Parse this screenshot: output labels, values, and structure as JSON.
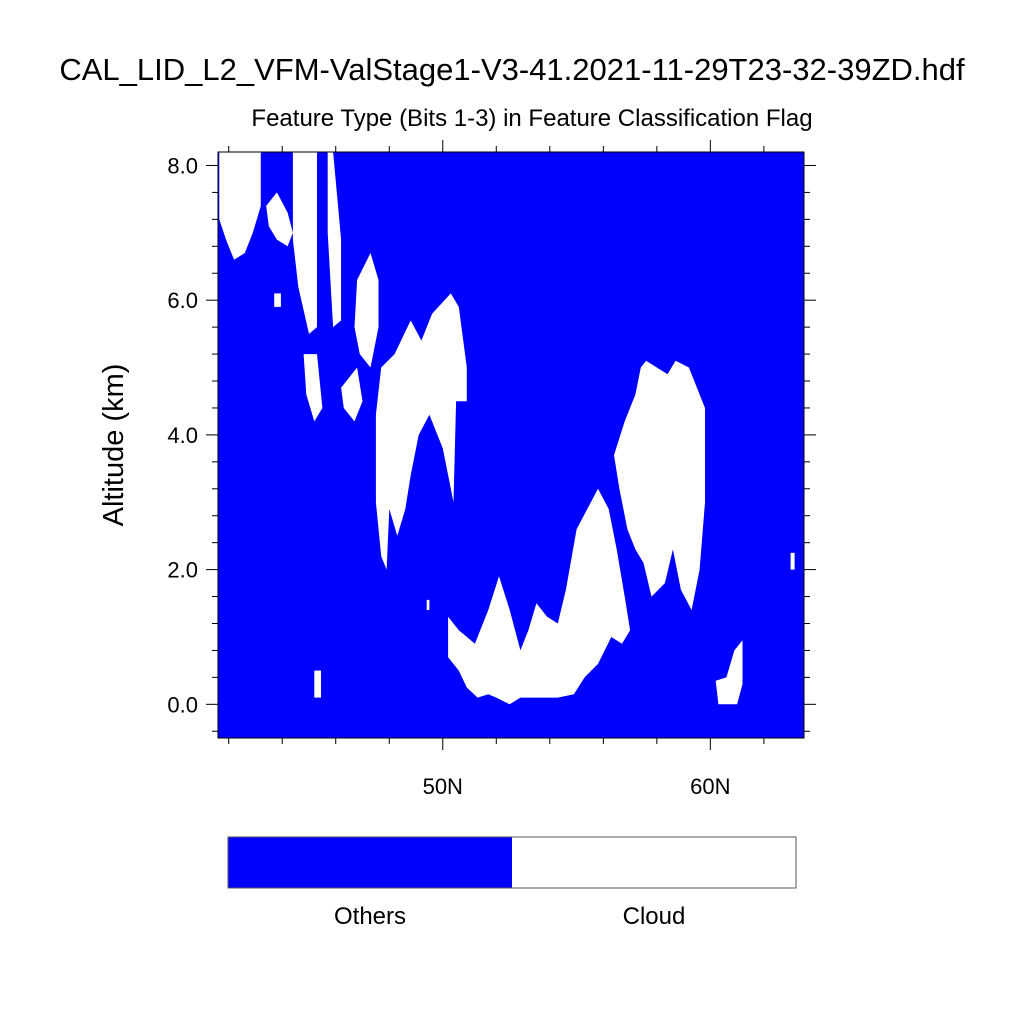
{
  "chart_data": {
    "type": "heatmap",
    "title": "CAL_LID_L2_VFM-ValStage1-V3-41.2021-11-29T23-32-39ZD.hdf",
    "subtitle": "Feature Type (Bits 1-3) in Feature Classification Flag",
    "xlabel": "",
    "ylabel": "Altitude (km)",
    "x_units": "degrees latitude N",
    "xlim": [
      41.6,
      63.5
    ],
    "ylim": [
      -0.5,
      8.2
    ],
    "x_ticks": [
      {
        "value": 50,
        "label": "50N"
      },
      {
        "value": 60,
        "label": "60N"
      }
    ],
    "x_minor_ticks": [
      42,
      44,
      46,
      48,
      52,
      54,
      56,
      58,
      62
    ],
    "y_ticks": [
      {
        "value": 0,
        "label": "0.0"
      },
      {
        "value": 2,
        "label": "2.0"
      },
      {
        "value": 4,
        "label": "4.0"
      },
      {
        "value": 6,
        "label": "6.0"
      },
      {
        "value": 8,
        "label": "8.0"
      }
    ],
    "y_minor_ticks": [
      -0.4,
      0.4,
      0.8,
      1.2,
      1.6,
      2.4,
      2.8,
      3.2,
      3.6,
      4.4,
      4.8,
      5.2,
      5.6,
      6.4,
      6.8,
      7.2,
      7.6
    ],
    "grid": false,
    "legend": {
      "placement": "bottom",
      "categories": [
        {
          "label": "Others",
          "color": "#0000ff"
        },
        {
          "label": "Cloud",
          "color": "#ffffff"
        }
      ]
    },
    "background_class": "Others",
    "cloud_regions": [
      {
        "class": "Cloud",
        "points": [
          [
            41.65,
            8.2
          ],
          [
            43.2,
            8.2
          ],
          [
            43.2,
            7.4
          ],
          [
            42.9,
            7.0
          ],
          [
            42.6,
            6.7
          ],
          [
            42.2,
            6.6
          ],
          [
            41.9,
            6.9
          ],
          [
            41.65,
            7.2
          ]
        ]
      },
      {
        "class": "Cloud",
        "points": [
          [
            43.4,
            7.4
          ],
          [
            43.8,
            7.6
          ],
          [
            44.2,
            7.3
          ],
          [
            44.4,
            7.0
          ],
          [
            44.2,
            6.8
          ],
          [
            43.8,
            6.9
          ],
          [
            43.5,
            7.1
          ]
        ]
      },
      {
        "class": "Cloud",
        "points": [
          [
            43.7,
            6.1
          ],
          [
            43.95,
            6.1
          ],
          [
            43.95,
            5.9
          ],
          [
            43.7,
            5.9
          ]
        ]
      },
      {
        "class": "Cloud",
        "points": [
          [
            44.4,
            8.2
          ],
          [
            45.3,
            8.2
          ],
          [
            45.3,
            5.6
          ],
          [
            45.0,
            5.5
          ],
          [
            44.6,
            6.2
          ],
          [
            44.4,
            6.9
          ]
        ]
      },
      {
        "class": "Cloud",
        "points": [
          [
            44.8,
            5.2
          ],
          [
            45.3,
            5.2
          ],
          [
            45.5,
            4.4
          ],
          [
            45.2,
            4.2
          ],
          [
            44.9,
            4.6
          ]
        ]
      },
      {
        "class": "Cloud",
        "points": [
          [
            45.7,
            8.2
          ],
          [
            45.9,
            8.2
          ],
          [
            46.2,
            6.9
          ],
          [
            46.2,
            5.7
          ],
          [
            45.9,
            5.6
          ],
          [
            45.7,
            7.0
          ]
        ]
      },
      {
        "class": "Cloud",
        "points": [
          [
            46.2,
            4.7
          ],
          [
            46.8,
            5.0
          ],
          [
            47.0,
            4.5
          ],
          [
            46.7,
            4.2
          ],
          [
            46.3,
            4.4
          ]
        ]
      },
      {
        "class": "Cloud",
        "points": [
          [
            46.8,
            6.3
          ],
          [
            47.3,
            6.7
          ],
          [
            47.6,
            6.3
          ],
          [
            47.6,
            5.6
          ],
          [
            47.3,
            5.0
          ],
          [
            46.9,
            5.2
          ],
          [
            46.7,
            5.6
          ]
        ]
      },
      {
        "class": "Cloud",
        "points": [
          [
            47.5,
            4.3
          ],
          [
            47.7,
            5.0
          ],
          [
            48.2,
            5.2
          ],
          [
            48.8,
            5.7
          ],
          [
            49.2,
            5.4
          ],
          [
            49.6,
            5.8
          ],
          [
            50.3,
            6.1
          ],
          [
            50.6,
            5.9
          ],
          [
            50.9,
            5.0
          ],
          [
            50.9,
            4.5
          ],
          [
            50.5,
            4.5
          ],
          [
            50.4,
            3.0
          ],
          [
            50.0,
            3.8
          ],
          [
            49.5,
            4.3
          ],
          [
            49.1,
            4.0
          ],
          [
            48.8,
            3.4
          ],
          [
            48.6,
            2.9
          ],
          [
            48.3,
            2.5
          ],
          [
            48.0,
            2.9
          ],
          [
            47.9,
            2.0
          ],
          [
            47.7,
            2.2
          ],
          [
            47.5,
            3.0
          ]
        ]
      },
      {
        "class": "Cloud",
        "points": [
          [
            50.2,
            1.3
          ],
          [
            50.6,
            1.1
          ],
          [
            51.2,
            0.9
          ],
          [
            51.7,
            1.4
          ],
          [
            52.1,
            1.9
          ],
          [
            52.5,
            1.4
          ],
          [
            52.9,
            0.8
          ],
          [
            53.2,
            1.1
          ],
          [
            53.5,
            1.5
          ],
          [
            53.9,
            1.3
          ],
          [
            54.3,
            1.2
          ],
          [
            54.6,
            1.7
          ],
          [
            55.0,
            2.6
          ],
          [
            55.4,
            2.9
          ],
          [
            55.8,
            3.2
          ],
          [
            56.2,
            2.9
          ],
          [
            56.5,
            2.3
          ],
          [
            56.8,
            1.6
          ],
          [
            57.0,
            1.1
          ],
          [
            56.7,
            0.9
          ],
          [
            56.3,
            1.0
          ],
          [
            55.8,
            0.6
          ],
          [
            55.3,
            0.4
          ],
          [
            54.9,
            0.15
          ],
          [
            54.3,
            0.1
          ],
          [
            53.8,
            0.1
          ],
          [
            53.4,
            0.1
          ],
          [
            52.9,
            0.1
          ],
          [
            52.5,
            0.0
          ],
          [
            52.0,
            0.1
          ],
          [
            51.7,
            0.15
          ],
          [
            51.3,
            0.1
          ],
          [
            50.9,
            0.25
          ],
          [
            50.6,
            0.5
          ],
          [
            50.2,
            0.7
          ]
        ]
      },
      {
        "class": "Cloud",
        "points": [
          [
            56.4,
            3.7
          ],
          [
            56.8,
            4.2
          ],
          [
            57.2,
            4.6
          ],
          [
            57.4,
            5.0
          ],
          [
            57.6,
            5.1
          ],
          [
            58.0,
            5.0
          ],
          [
            58.4,
            4.9
          ],
          [
            58.7,
            5.1
          ],
          [
            59.2,
            5.0
          ],
          [
            59.6,
            4.6
          ],
          [
            59.8,
            4.4
          ],
          [
            59.8,
            3.0
          ],
          [
            59.6,
            2.0
          ],
          [
            59.3,
            1.4
          ],
          [
            58.9,
            1.7
          ],
          [
            58.6,
            2.3
          ],
          [
            58.3,
            1.8
          ],
          [
            57.8,
            1.6
          ],
          [
            57.5,
            2.1
          ],
          [
            57.2,
            2.3
          ],
          [
            56.9,
            2.6
          ],
          [
            56.6,
            3.2
          ]
        ]
      },
      {
        "class": "Cloud",
        "points": [
          [
            45.2,
            0.5
          ],
          [
            45.45,
            0.5
          ],
          [
            45.45,
            0.1
          ],
          [
            45.2,
            0.1
          ]
        ]
      },
      {
        "class": "Cloud",
        "points": [
          [
            60.2,
            0.35
          ],
          [
            60.6,
            0.4
          ],
          [
            60.9,
            0.8
          ],
          [
            61.2,
            0.95
          ],
          [
            61.2,
            0.3
          ],
          [
            61.0,
            0.0
          ],
          [
            60.3,
            0.0
          ]
        ]
      },
      {
        "class": "Cloud",
        "points": [
          [
            63.0,
            2.25
          ],
          [
            63.15,
            2.25
          ],
          [
            63.15,
            2.0
          ],
          [
            63.0,
            2.0
          ]
        ]
      },
      {
        "class": "Cloud",
        "points": [
          [
            49.4,
            1.55
          ],
          [
            49.5,
            1.55
          ],
          [
            49.5,
            1.4
          ],
          [
            49.4,
            1.4
          ]
        ]
      }
    ]
  }
}
